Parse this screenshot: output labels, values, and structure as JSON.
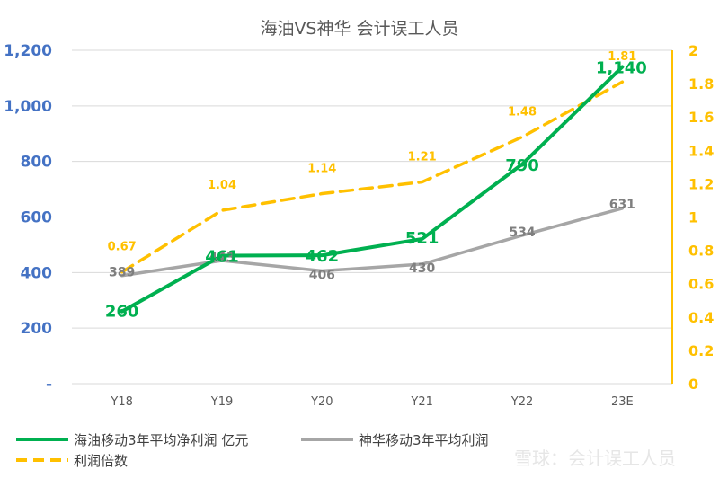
{
  "chart_data": {
    "type": "line",
    "title": "海油VS神华 会计误工人员",
    "categories": [
      "Y18",
      "Y19",
      "Y20",
      "Y21",
      "Y22",
      "23E"
    ],
    "y_left": {
      "ticks": [
        "-",
        "200",
        "400",
        "600",
        "800",
        "1,000",
        "1,200"
      ],
      "range": [
        0,
        1200
      ]
    },
    "y_right": {
      "ticks": [
        "0",
        "0.2",
        "0.4",
        "0.6",
        "0.8",
        "1",
        "1.2",
        "1.4",
        "1.6",
        "1.8",
        "2"
      ],
      "range": [
        0,
        2
      ]
    },
    "series": [
      {
        "name": "海油移动3年平均净利润 亿元",
        "axis": "left",
        "color": "#00B050",
        "style": "solid",
        "values": [
          260,
          461,
          462,
          521,
          790,
          1140
        ],
        "labels": [
          "260",
          "461",
          "462",
          "521",
          "790",
          "1,140"
        ]
      },
      {
        "name": "神华移动3年平均利润",
        "axis": "left",
        "color": "#A6A6A6",
        "style": "solid",
        "values": [
          389,
          443,
          406,
          430,
          534,
          631
        ],
        "labels": [
          "389",
          "443",
          "406",
          "430",
          "534",
          "631"
        ]
      },
      {
        "name": "利润倍数",
        "axis": "right",
        "color": "#FFC000",
        "style": "dashed",
        "values": [
          0.67,
          1.04,
          1.14,
          1.21,
          1.48,
          1.81
        ],
        "labels": [
          "0.67",
          "1.04",
          "1.14",
          "1.21",
          "1.48",
          "1.81"
        ]
      }
    ],
    "grid": true,
    "legend_position": "bottom-left"
  },
  "watermark": "雪球：会计误工人员"
}
